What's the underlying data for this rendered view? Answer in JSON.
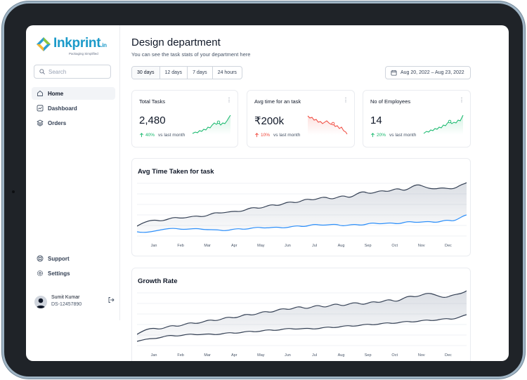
{
  "brand": {
    "name": "Inkprint",
    "suffix": ".in",
    "tagline": "Packaging Simplified"
  },
  "search": {
    "placeholder": "Search"
  },
  "nav": {
    "items": [
      {
        "label": "Home",
        "icon": "home-icon",
        "active": true
      },
      {
        "label": "Dashboard",
        "icon": "chart-icon",
        "active": false
      },
      {
        "label": "Orders",
        "icon": "layers-icon",
        "active": false
      }
    ],
    "bottom": [
      {
        "label": "Support",
        "icon": "lifebuoy-icon"
      },
      {
        "label": "Settings",
        "icon": "gear-icon"
      }
    ]
  },
  "user": {
    "name": "Sumit Kumar",
    "id": "DS-12457890"
  },
  "header": {
    "title": "Design department",
    "subtitle": "You can see the task stats of your department here"
  },
  "ranges": [
    {
      "label": "30 days",
      "active": true
    },
    {
      "label": "12 days",
      "active": false
    },
    {
      "label": "7 days",
      "active": false
    },
    {
      "label": "24 hours",
      "active": false
    }
  ],
  "date_range": "Aug 20, 2022 – Aug 23, 2022",
  "stats": [
    {
      "label": "Total Tasks",
      "value": "2,480",
      "change": "40%",
      "direction": "up",
      "note": "vs last month",
      "color": "#12b76a"
    },
    {
      "label": "Avg time for an task",
      "value": "₹200k",
      "change": "10%",
      "direction": "down",
      "note": "vs last month",
      "color": "#f04438"
    },
    {
      "label": "No of Employees",
      "value": "14",
      "change": "20%",
      "direction": "up",
      "note": "vs last month",
      "color": "#12b76a"
    }
  ],
  "charts": {
    "months": [
      "Jan",
      "Feb",
      "Mar",
      "Apr",
      "May",
      "Jun",
      "Jul",
      "Aug",
      "Sep",
      "Oct",
      "Nov",
      "Dec"
    ],
    "avg_time": {
      "title": "Avg Time Taken for task",
      "line_colors": [
        "#344054",
        "#2e90fa"
      ]
    },
    "growth": {
      "title": "Growth Rate",
      "line_colors": [
        "#344054",
        "#344054"
      ]
    }
  },
  "colors": {
    "accent": "#1b9ac9",
    "up": "#12b76a",
    "down": "#f04438"
  }
}
